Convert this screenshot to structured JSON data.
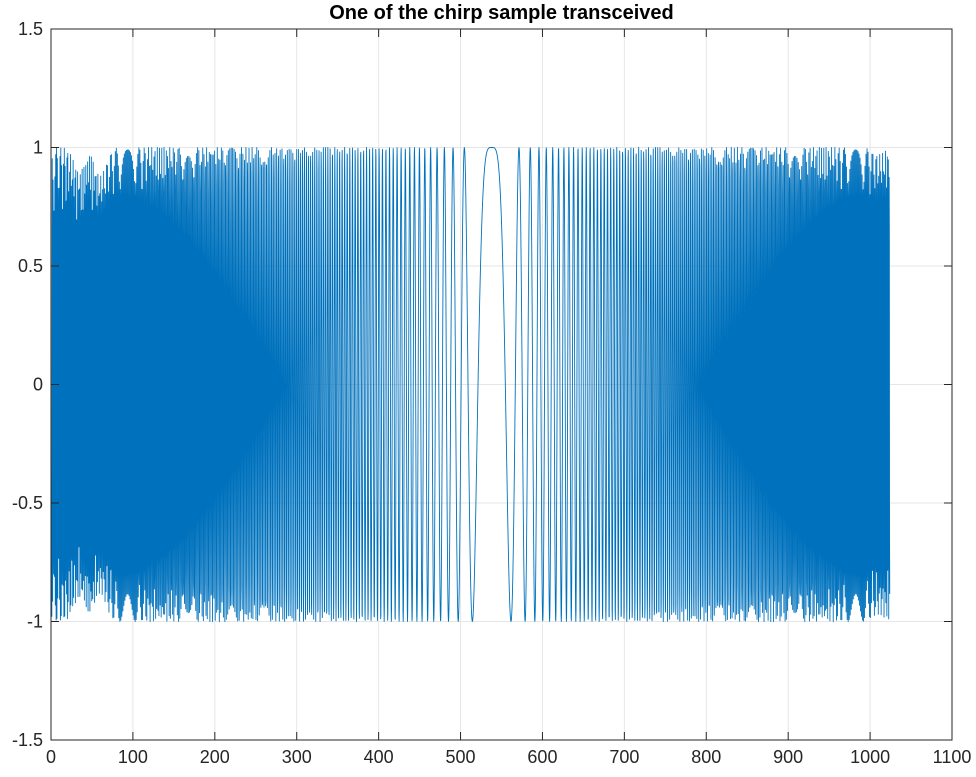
{
  "chart_data": {
    "type": "line",
    "title": "One of the chirp sample transceived",
    "xlabel": "",
    "ylabel": "",
    "xlim": [
      0,
      1100
    ],
    "ylim": [
      -1.5,
      1.5
    ],
    "xticks": [
      0,
      100,
      200,
      300,
      400,
      500,
      600,
      700,
      800,
      900,
      1000,
      1100
    ],
    "yticks": [
      -1.5,
      -1,
      -0.5,
      0,
      0.5,
      1,
      1.5
    ],
    "xtick_labels": [
      "0",
      "100",
      "200",
      "300",
      "400",
      "500",
      "600",
      "700",
      "800",
      "900",
      "1000",
      "1100"
    ],
    "ytick_labels": [
      "-1.5",
      "-1",
      "-0.5",
      "0",
      "0.5",
      "1",
      "1.5"
    ],
    "grid": true,
    "series": [
      {
        "color": "#0072BD",
        "sample_count": 1024,
        "x_range": [
          1,
          1024
        ],
        "y_range": [
          -1,
          1
        ],
        "signal": "linear chirp, frequency decreasing to near zero at sample ~538 then increasing, cos waveform",
        "k": 0.0018,
        "center_sample": 538,
        "envelope_dips": [
          {
            "x": 35,
            "amplitude": 0.9
          },
          {
            "x": 60,
            "amplitude": 0.88
          },
          {
            "x": 1010,
            "amplitude": 0.97
          }
        ]
      }
    ]
  }
}
